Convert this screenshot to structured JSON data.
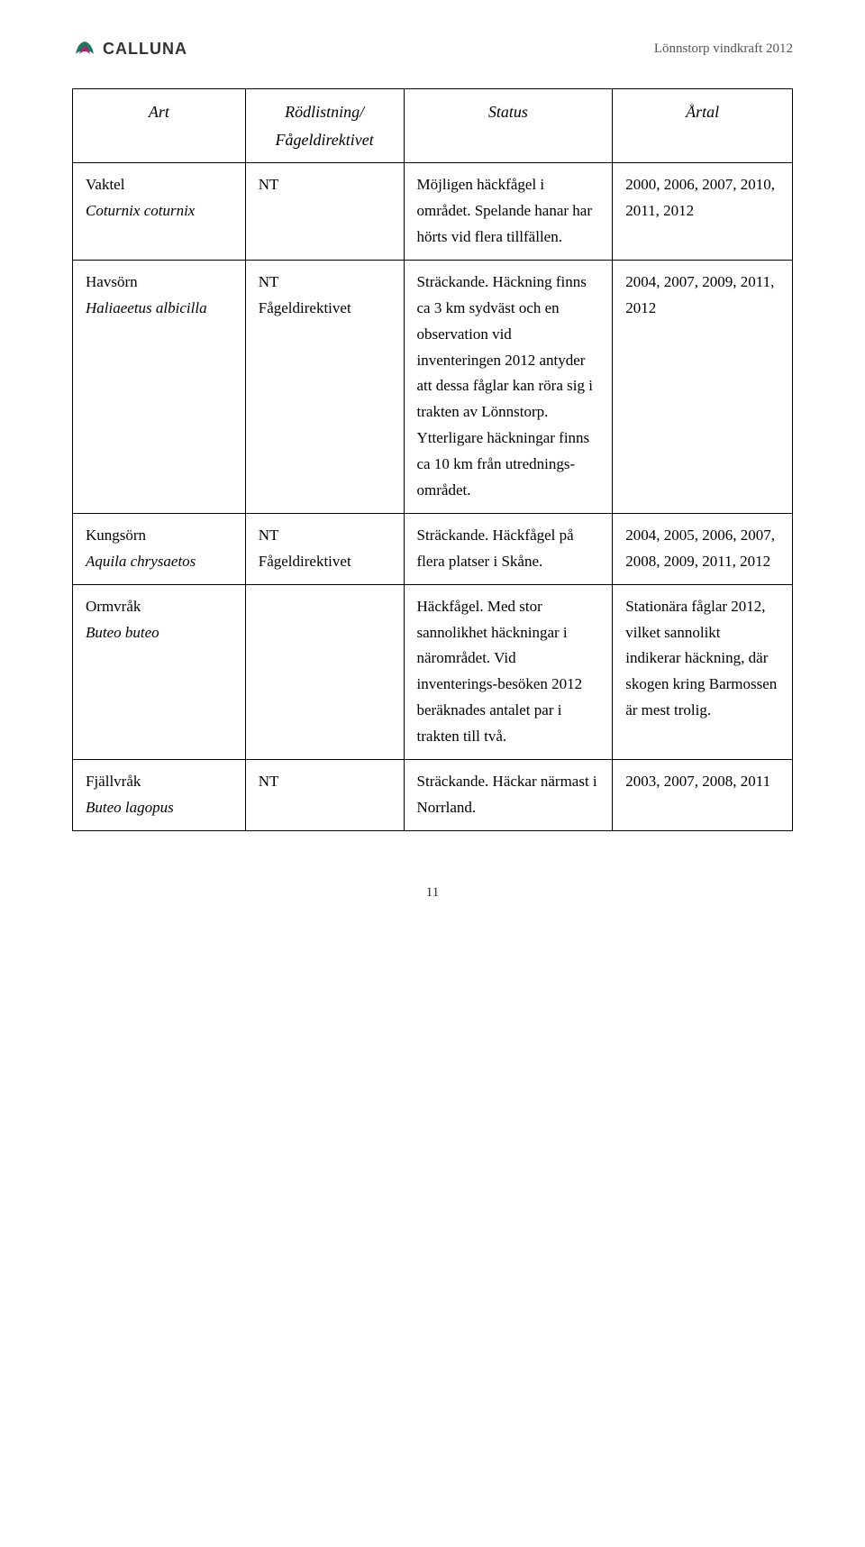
{
  "header": {
    "logo_text": "CALLUNA",
    "doc_title": "Lönnstorp vindkraft 2012",
    "logo_colors": {
      "outer": "#1b7a5a",
      "inner": "#9c2b6f"
    }
  },
  "table": {
    "columns": [
      "Art",
      "Rödlistning/ Fågeldirektivet",
      "Status",
      "Årtal"
    ],
    "rows": [
      {
        "species_common": "Vaktel",
        "species_latin": "Coturnix coturnix",
        "redlist": "NT",
        "status": "Möjligen häckfågel i området. Spelande hanar har hörts vid flera tillfällen.",
        "years": "2000, 2006, 2007, 2010, 2011, 2012"
      },
      {
        "species_common": "Havsörn",
        "species_latin": "Haliaeetus albicilla",
        "redlist": "NT\nFågeldirektivet",
        "status": "Sträckande. Häckning finns ca 3 km sydväst och en observation vid inventeringen 2012 antyder att dessa fåglar kan röra sig i trakten av Lönnstorp. Ytterligare häckningar finns ca 10 km från utrednings-området.",
        "years": "2004, 2007, 2009, 2011, 2012"
      },
      {
        "species_common": "Kungsörn",
        "species_latin": "Aquila chrysaetos",
        "redlist": "NT\nFågeldirektivet",
        "status": "Sträckande. Häckfågel på flera platser i Skåne.",
        "years": "2004, 2005, 2006, 2007, 2008, 2009, 2011, 2012"
      },
      {
        "species_common": "Ormvråk",
        "species_latin": "Buteo buteo",
        "redlist": "",
        "status": "Häckfågel. Med stor sannolikhet häckningar i närområdet. Vid inventerings-besöken 2012 beräknades antalet par i trakten till två.",
        "years": "Stationära fåglar 2012, vilket sannolikt indikerar häckning, där skogen kring Barmossen är mest trolig."
      },
      {
        "species_common": "Fjällvråk",
        "species_latin": "Buteo lagopus",
        "redlist": "NT",
        "status": "Sträckande. Häckar närmast i Norrland.",
        "years": "2003, 2007, 2008, 2011"
      }
    ]
  },
  "page_number": "11"
}
